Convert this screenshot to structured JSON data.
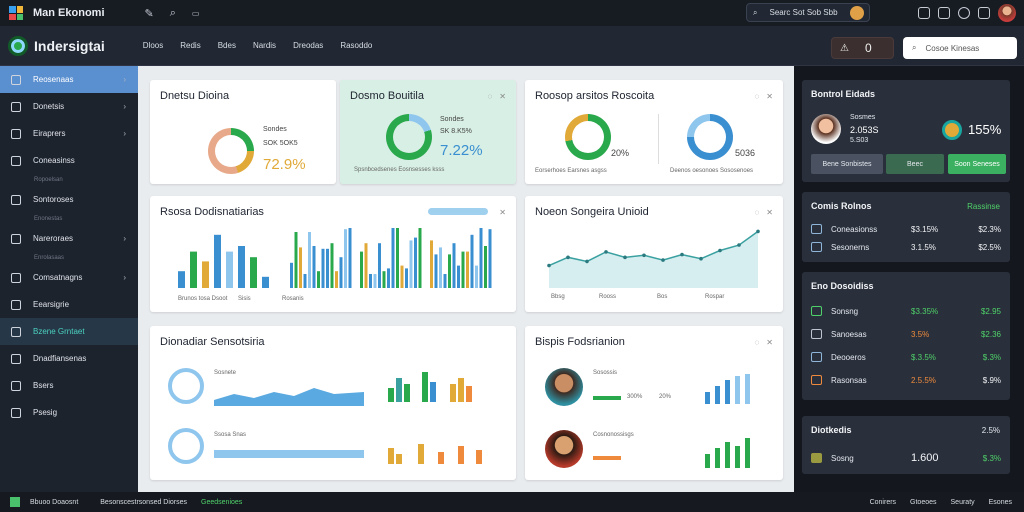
{
  "app": {
    "title": "Man Ekonomi"
  },
  "top": {
    "search": "Searc Sot Sob Sbb",
    "icons": [
      "edit-icon",
      "search-icon",
      "filter-icon",
      "copy-icon",
      "save-icon",
      "globe-icon",
      "phone-icon"
    ]
  },
  "brand": {
    "name": "Indersigtai"
  },
  "menu": [
    "Dloos",
    "Redis",
    "Bdes",
    "Nardis",
    "Dreodas",
    "Rasoddo"
  ],
  "notif": {
    "count": "0"
  },
  "secsearch": {
    "placeholder": "Cosoe Kinesas"
  },
  "sidebar": [
    {
      "label": "Reosenaas",
      "active": true,
      "chev": true
    },
    {
      "label": "Donetsis",
      "chev": true
    },
    {
      "label": "Eiraprers",
      "chev": true
    },
    {
      "label": "Coneasinss",
      "sub": "Ropoelsan"
    },
    {
      "label": "Sontoroses",
      "sub": "Enonestas"
    },
    {
      "label": "Nareroraes",
      "chev": true,
      "sub": "Enrolasaas"
    },
    {
      "label": "Comsatnagns",
      "chev": true
    },
    {
      "label": "Eearsigrie"
    },
    {
      "label": "Bzene Grntaet",
      "hl": true
    },
    {
      "label": "Dnadfiansenas"
    },
    {
      "label": "Bsers"
    },
    {
      "label": "Psesig"
    }
  ],
  "cards": {
    "c1": {
      "title": "Dnetsu Dioina",
      "a": "Sondes",
      "b": "SOK 5OK5",
      "pct": "72.9%"
    },
    "c2": {
      "title": "Dosmo Bouitila",
      "a": "Sondes",
      "b": "SK 8.K5%",
      "pct": "7.22%",
      "foot": "Spsnbcedsenes Eosnsesses ksss"
    },
    "c3": {
      "title": "Roosop arsitos Roscoita",
      "pct1": "20%",
      "pct2": "5036",
      "foot1": "Eorserhoes Earsnes asgss",
      "foot2": "Deenos oesonoes Sososenoes"
    },
    "c4": {
      "title": "Rsosa Dodisnatiarias",
      "legend1": "Brunos tosa Dsoot",
      "legend2": "Sisis",
      "legend3": "Rosanis"
    },
    "c5": {
      "title": "Noeon Songeira Unioid",
      "l1": "Bbsg",
      "l2": "Rooss",
      "l3": "Bos",
      "l4": "Rospar"
    },
    "c6": {
      "title": "Dionadiar Sensotsiria",
      "r1": "Sosnete",
      "r2": "Ssosa Snas"
    },
    "c7": {
      "title": "Bispis Fodsrianion",
      "p1": "Sosossis",
      "p2": "Cosnonossisgs",
      "t1": "300%",
      "t2": "20%"
    }
  },
  "right": {
    "r1": {
      "title": "Bontrol Eidads",
      "a": "Sosmes",
      "b": "2.053S",
      "c": "5.S03",
      "pct": "155%",
      "btn1": "Bene Sonbistes",
      "btn2": "Beec",
      "btn3": "Soon Seneses"
    },
    "r2": {
      "title": "Comis Rolnos",
      "accent": "Rassinse",
      "rows": [
        {
          "l": "Coneasionss",
          "v1": "$3.15%",
          "v2": "$2.3%"
        },
        {
          "l": "Sesonerns",
          "v1": "3.1.5%",
          "v2": "$2.5%"
        }
      ]
    },
    "r3": {
      "title": "Eno Dosoidiss",
      "rows": [
        {
          "l": "Sonsng",
          "v1": "$3.35%",
          "v2": "$2.95"
        },
        {
          "l": "Sanoesas",
          "v1": "3.5%",
          "v2": "$2.36"
        },
        {
          "l": "Deooeros",
          "v1": "$.3.5%",
          "v2": "$.3%"
        },
        {
          "l": "Rasonsas",
          "v1": "2.5.5%",
          "v2": "$.9%"
        }
      ]
    },
    "r4": {
      "title": "Diotkedis",
      "a": "2.5%",
      "row": {
        "l": "Sosng",
        "v1": "1.600",
        "v2": "$.3%"
      }
    }
  },
  "status": {
    "a": "Bbuoo Doaosnt",
    "b": "Besonscestrsonsed Diorses",
    "c": "Geedsenioes",
    "d": [
      "Conirers",
      "Gtoeoes",
      "Seuraty",
      "Esones"
    ]
  },
  "colors": {
    "accent": "#5a8fd0",
    "green": "#2aa84c",
    "orange": "#ef8a3c",
    "teal": "#d8efe5"
  },
  "chart_data": [
    {
      "type": "bar",
      "series": [
        {
          "values": [
            12,
            26,
            19,
            38,
            26,
            30,
            22,
            8
          ]
        },
        {
          "values": [
            8,
            14,
            22,
            18,
            10,
            16
          ]
        }
      ]
    },
    {
      "type": "line",
      "values": [
        30,
        42,
        36,
        50,
        42,
        45,
        38,
        46,
        40,
        52,
        60,
        80
      ]
    }
  ]
}
